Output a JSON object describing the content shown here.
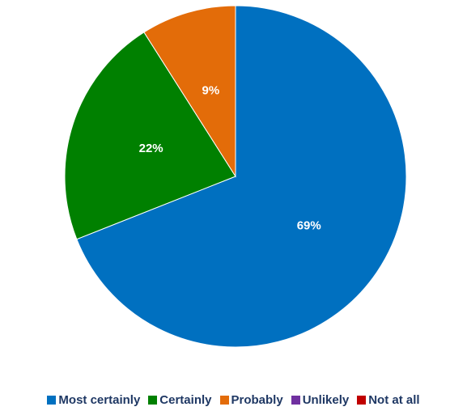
{
  "chart_data": {
    "type": "pie",
    "title": "",
    "categories": [
      "Most certainly",
      "Certainly",
      "Probably",
      "Unlikely",
      "Not at all"
    ],
    "values": [
      69,
      22,
      9,
      0,
      0
    ],
    "labels": [
      "69%",
      "22%",
      "9%",
      "",
      ""
    ],
    "colors": [
      "#0070c0",
      "#008000",
      "#e36c09",
      "#7030a0",
      "#c00000"
    ],
    "start_angle_deg": 0,
    "direction": "clockwise",
    "legend_position": "bottom"
  },
  "legend": {
    "items": [
      {
        "label": "Most certainly",
        "color": "#0070c0"
      },
      {
        "label": "Certainly",
        "color": "#008000"
      },
      {
        "label": "Probably",
        "color": "#e36c09"
      },
      {
        "label": "Unlikely",
        "color": "#7030a0"
      },
      {
        "label": "Not at all",
        "color": "#c00000"
      }
    ]
  }
}
